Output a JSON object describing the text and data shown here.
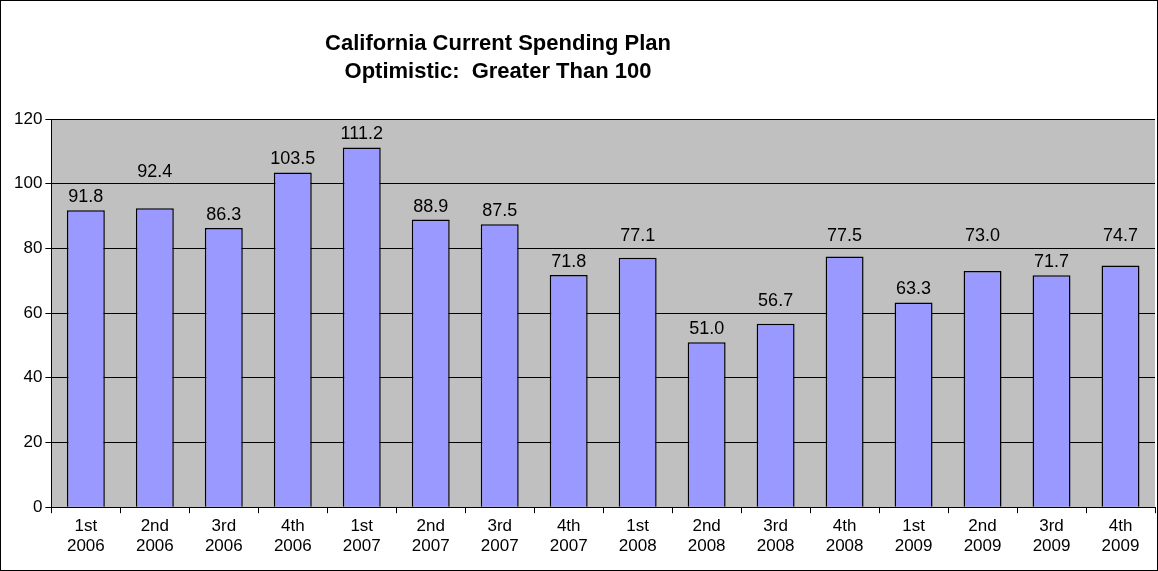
{
  "chart_data": {
    "type": "bar",
    "title": "California Current Spending Plan\nOptimistic:  Greater Than 100",
    "categories": [
      "1st 2006",
      "2nd 2006",
      "3rd 2006",
      "4th 2006",
      "1st 2007",
      "2nd 2007",
      "3rd 2007",
      "4th 2007",
      "1st 2008",
      "2nd 2008",
      "3rd 2008",
      "4th 2008",
      "1st 2009",
      "2nd 2009",
      "3rd 2009",
      "4th 2009"
    ],
    "values": [
      91.8,
      92.4,
      86.3,
      103.5,
      111.2,
      88.9,
      87.5,
      71.8,
      77.1,
      51.0,
      56.7,
      77.5,
      63.3,
      73.0,
      71.7,
      74.7
    ],
    "value_labels": [
      "91.8",
      "92.4",
      "86.3",
      "103.5",
      "111.2",
      "88.9",
      "87.5",
      "71.8",
      "77.1",
      "51.0",
      "56.7",
      "77.5",
      "63.3",
      "73.0",
      "71.7",
      "74.7"
    ],
    "color": "#9999ff",
    "ylim": [
      0,
      120
    ],
    "yticks": [
      0,
      20,
      40,
      60,
      80,
      100,
      120
    ],
    "grid": "y"
  }
}
